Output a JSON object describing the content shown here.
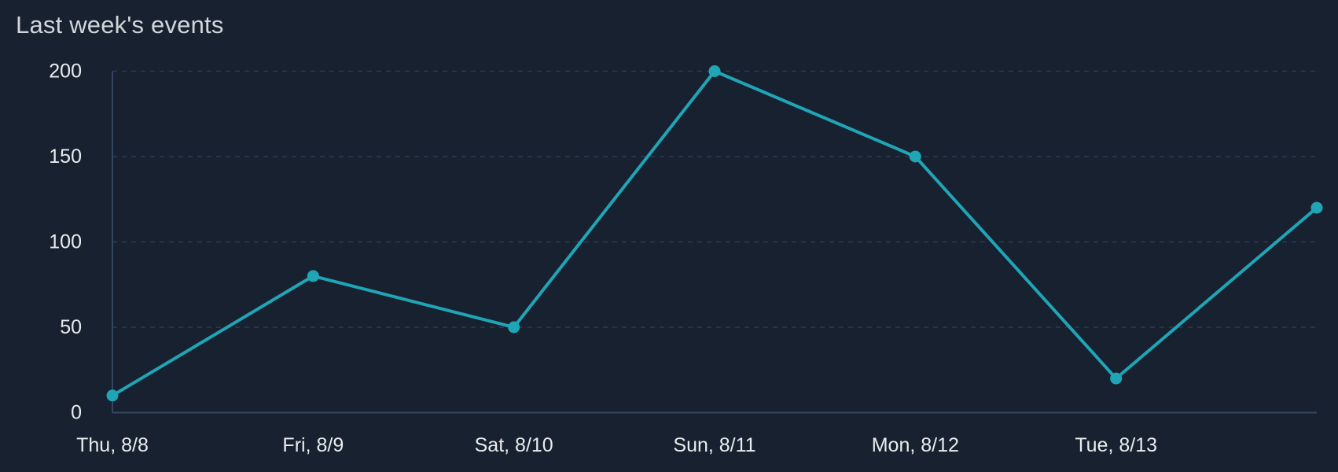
{
  "page": {
    "background": "#18212f"
  },
  "header": {
    "title": "Last week's events"
  },
  "chart_data": {
    "type": "line",
    "title": "Last week's events",
    "categories": [
      "Thu, 8/8",
      "Fri, 8/9",
      "Sat, 8/10",
      "Sun, 8/11",
      "Mon, 8/12",
      "Tue, 8/13",
      ""
    ],
    "values": [
      10,
      80,
      50,
      200,
      150,
      20,
      120
    ],
    "xlabel": "",
    "ylabel": "",
    "ylim": [
      0,
      200
    ],
    "yticks": [
      0,
      50,
      100,
      150,
      200
    ],
    "grid": "horizontal-dashed",
    "legend": "none",
    "marker": "circle",
    "colors": {
      "line": "#1fa5b6",
      "background": "#18212f",
      "grid": "#2c3a53",
      "axis": "#36455f",
      "tick_label": "#e9ecef",
      "title": "#d2d6dc"
    }
  }
}
